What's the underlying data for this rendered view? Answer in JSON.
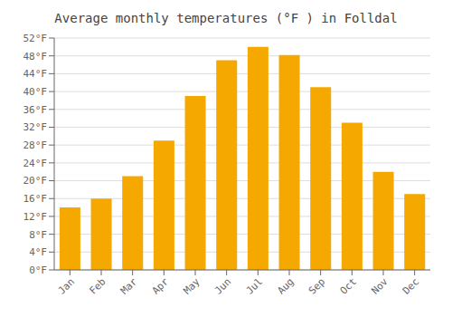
{
  "chart_data": {
    "type": "bar",
    "title": "Average monthly temperatures (°F ) in Folldal",
    "categories": [
      "Jan",
      "Feb",
      "Mar",
      "Apr",
      "May",
      "Jun",
      "Jul",
      "Aug",
      "Sep",
      "Oct",
      "Nov",
      "Dec"
    ],
    "values": [
      14.0,
      16.0,
      21.0,
      29.0,
      39.0,
      47.0,
      50.0,
      48.2,
      41.0,
      33.0,
      22.0,
      17.0
    ],
    "color": "#F5A800",
    "ylim": [
      0,
      52
    ],
    "yticks": [
      {
        "value": 0,
        "label": "0°F"
      },
      {
        "value": 4,
        "label": "4°F"
      },
      {
        "value": 8,
        "label": "8°F"
      },
      {
        "value": 12,
        "label": "12°F"
      },
      {
        "value": 16,
        "label": "16°F"
      },
      {
        "value": 20,
        "label": "20°F"
      },
      {
        "value": 24,
        "label": "24°F"
      },
      {
        "value": 28,
        "label": "28°F"
      },
      {
        "value": 32,
        "label": "32°F"
      },
      {
        "value": 36,
        "label": "36°F"
      },
      {
        "value": 40,
        "label": "40°F"
      },
      {
        "value": 44,
        "label": "44°F"
      },
      {
        "value": 48,
        "label": "48°F"
      },
      {
        "value": 52,
        "label": "52°F"
      }
    ],
    "grid": true
  }
}
